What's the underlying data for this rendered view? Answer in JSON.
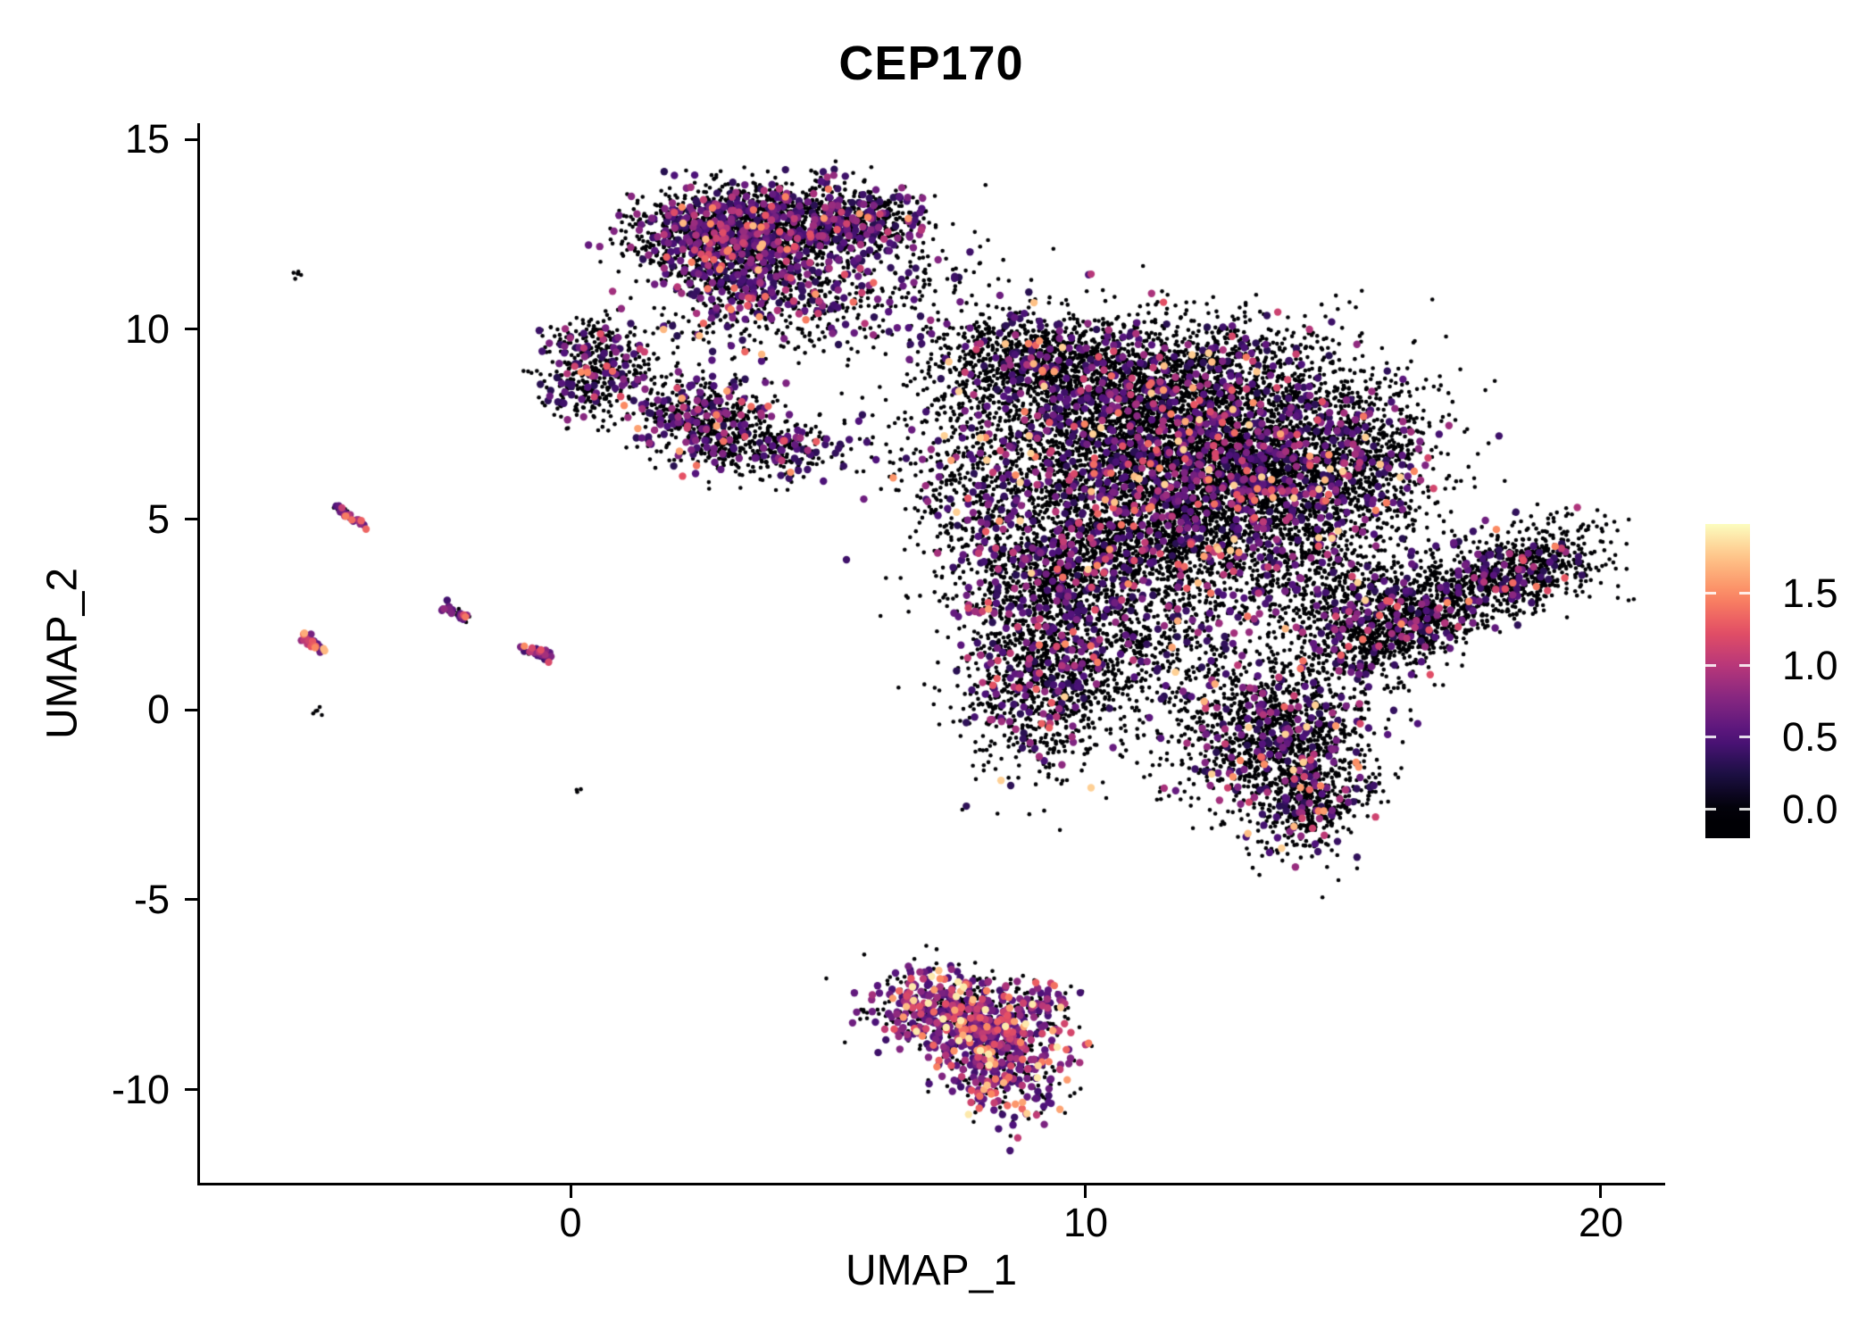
{
  "title": "CEP170",
  "axes": {
    "x": {
      "label": "UMAP_1",
      "tick_labels": [
        "0",
        "10",
        "20"
      ]
    },
    "y": {
      "label": "UMAP_2",
      "tick_labels": [
        "15",
        "10",
        "5",
        "0",
        "-5",
        "-10"
      ]
    }
  },
  "colorbar": {
    "tick_labels": [
      "1.5",
      "1.0",
      "0.5",
      "0.0"
    ],
    "domain_min": -0.19,
    "domain_max": 1.98,
    "colormap": "magma"
  },
  "chart_data": {
    "type": "scatter",
    "title": "CEP170",
    "xlabel": "UMAP_1",
    "ylabel": "UMAP_2",
    "x_ticks": [
      0,
      10,
      20
    ],
    "y_ticks": [
      15,
      10,
      5,
      0,
      -5,
      -10
    ],
    "xlim": [
      -7.3,
      22.5
    ],
    "ylim": [
      -12.4,
      15.4
    ],
    "grid": false,
    "legend": "colorbar-right",
    "colormap": "magma",
    "color_max": 1.98,
    "seed": 11,
    "point_radius": {
      "zero": 2.3,
      "positive": 4.2
    },
    "clusters": [
      {
        "name": "top-cluster",
        "expression": {
          "p_positive": 0.25,
          "base": 0.3,
          "scale": 0.35,
          "max": 1.7
        },
        "components": [
          {
            "cx": 3.0,
            "cy": 12.5,
            "sx": 0.85,
            "sy": 0.6,
            "n": 1300
          },
          {
            "cx": 4.7,
            "cy": 12.7,
            "sx": 0.85,
            "sy": 0.55,
            "n": 700
          },
          {
            "cx": 5.9,
            "cy": 12.9,
            "sx": 0.55,
            "sy": 0.45,
            "n": 230
          },
          {
            "cx": 3.7,
            "cy": 11.3,
            "sx": 1.0,
            "sy": 0.55,
            "n": 450
          },
          {
            "cx": 4.4,
            "cy": 10.3,
            "sx": 1.1,
            "sy": 0.7,
            "n": 170
          },
          {
            "cx": 6.6,
            "cy": 11.2,
            "sx": 0.9,
            "sy": 0.9,
            "n": 140
          },
          {
            "cx": 2.6,
            "cy": 9.9,
            "sx": 0.6,
            "sy": 0.8,
            "n": 60
          }
        ]
      },
      {
        "name": "upper-left-cluster",
        "expression": {
          "p_positive": 0.18,
          "base": 0.3,
          "scale": 0.35,
          "max": 1.5
        },
        "components": [
          {
            "cx": 0.5,
            "cy": 9.4,
            "sx": 0.5,
            "sy": 0.45,
            "n": 260
          },
          {
            "cx": 0.25,
            "cy": 8.3,
            "sx": 0.4,
            "sy": 0.4,
            "n": 150
          },
          {
            "cx": 1.1,
            "cy": 8.7,
            "sx": 0.4,
            "sy": 0.35,
            "n": 60
          }
        ]
      },
      {
        "name": "mid-left-cluster",
        "expression": {
          "p_positive": 0.2,
          "base": 0.3,
          "scale": 0.35,
          "max": 1.6
        },
        "components": [
          {
            "cx": 2.6,
            "cy": 7.7,
            "sx": 0.65,
            "sy": 0.5,
            "n": 480
          },
          {
            "cx": 3.4,
            "cy": 6.9,
            "sx": 0.75,
            "sy": 0.4,
            "n": 260
          },
          {
            "cx": 4.3,
            "cy": 6.8,
            "sx": 0.45,
            "sy": 0.3,
            "n": 90
          },
          {
            "cx": 5.5,
            "cy": 7.1,
            "sx": 0.7,
            "sy": 0.5,
            "n": 40
          }
        ]
      },
      {
        "name": "main-cluster",
        "expression": {
          "p_positive": 0.13,
          "base": 0.3,
          "scale": 0.4,
          "max": 1.8
        },
        "components": [
          {
            "cx": 9.0,
            "cy": 9.2,
            "sx": 1.05,
            "sy": 0.6,
            "n": 850
          },
          {
            "cx": 7.9,
            "cy": 6.3,
            "sx": 0.8,
            "sy": 1.2,
            "n": 420
          },
          {
            "cx": 10.9,
            "cy": 7.2,
            "sx": 1.45,
            "sy": 1.25,
            "n": 3100
          },
          {
            "cx": 13.5,
            "cy": 6.4,
            "sx": 1.25,
            "sy": 1.4,
            "n": 2500
          },
          {
            "cx": 15.4,
            "cy": 6.6,
            "sx": 0.75,
            "sy": 1.15,
            "n": 600
          },
          {
            "cx": 12.0,
            "cy": 9.0,
            "sx": 1.6,
            "sy": 0.8,
            "n": 700
          },
          {
            "cx": 11.4,
            "cy": 4.4,
            "sx": 1.7,
            "sy": 1.0,
            "n": 1700
          },
          {
            "cx": 9.3,
            "cy": 3.3,
            "sx": 0.95,
            "sy": 0.95,
            "n": 850
          },
          {
            "cx": 9.2,
            "cy": 0.7,
            "sx": 0.8,
            "sy": 1.15,
            "n": 950
          },
          {
            "cx": 11.2,
            "cy": 1.6,
            "sx": 1.2,
            "sy": 0.95,
            "n": 520
          },
          {
            "cx": 13.7,
            "cy": -0.7,
            "sx": 1.0,
            "sy": 1.05,
            "n": 1350
          },
          {
            "cx": 14.3,
            "cy": -2.5,
            "sx": 0.55,
            "sy": 0.65,
            "n": 380
          },
          {
            "cx": 14.9,
            "cy": 2.9,
            "sx": 0.85,
            "sy": 0.95,
            "n": 480
          }
        ]
      },
      {
        "name": "right-cluster",
        "expression": {
          "p_positive": 0.1,
          "base": 0.3,
          "scale": 0.35,
          "max": 1.5
        },
        "components": [
          {
            "cx": 17.1,
            "cy": 3.0,
            "sx": 1.15,
            "sy": 0.55,
            "rot": 28,
            "n": 900
          },
          {
            "cx": 18.7,
            "cy": 3.9,
            "sx": 0.75,
            "sy": 0.5,
            "rot": 28,
            "n": 450
          },
          {
            "cx": 16.0,
            "cy": 2.0,
            "sx": 0.7,
            "sy": 0.5,
            "rot": 30,
            "n": 330
          },
          {
            "cx": 15.3,
            "cy": 1.6,
            "sx": 0.5,
            "sy": 0.4,
            "rot": 0,
            "n": 120
          }
        ]
      },
      {
        "name": "bottom-high-expression-cluster",
        "expression": {
          "p_positive": 0.55,
          "base": 0.4,
          "scale": 0.45,
          "max": 1.9
        },
        "components": [
          {
            "cx": 7.2,
            "cy": -7.8,
            "sx": 0.7,
            "sy": 0.5,
            "n": 420
          },
          {
            "cx": 8.4,
            "cy": -9.2,
            "sx": 0.6,
            "sy": 0.75,
            "n": 480
          },
          {
            "cx": 7.9,
            "cy": -8.3,
            "sx": 0.5,
            "sy": 0.4,
            "n": 200
          },
          {
            "cx": 9.2,
            "cy": -7.7,
            "sx": 0.35,
            "sy": 0.3,
            "n": 70
          }
        ]
      }
    ],
    "streaks": [
      {
        "name": "streak-1",
        "x1": -4.6,
        "y1": 5.35,
        "x2": -4.05,
        "y2": 4.9,
        "jitter": 0.05,
        "n": 40,
        "expression": {
          "p_positive": 0.55,
          "base": 0.4,
          "scale": 0.35,
          "max": 1.5
        }
      },
      {
        "name": "streak-2",
        "x1": -2.45,
        "y1": 2.75,
        "x2": -2.0,
        "y2": 2.35,
        "jitter": 0.05,
        "n": 35,
        "expression": {
          "p_positive": 0.55,
          "base": 0.4,
          "scale": 0.35,
          "max": 1.5
        }
      },
      {
        "name": "streak-3",
        "x1": -5.25,
        "y1": 1.95,
        "x2": -4.8,
        "y2": 1.55,
        "jitter": 0.05,
        "n": 35,
        "expression": {
          "p_positive": 0.6,
          "base": 0.5,
          "scale": 0.45,
          "max": 1.7
        }
      },
      {
        "name": "streak-4",
        "x1": -0.95,
        "y1": 1.7,
        "x2": -0.4,
        "y2": 1.35,
        "jitter": 0.06,
        "n": 40,
        "expression": {
          "p_positive": 0.55,
          "base": 0.4,
          "scale": 0.35,
          "max": 1.5
        }
      }
    ],
    "isolated_dots": [
      {
        "x": -5.35,
        "y": 11.45,
        "n": 6,
        "jitter": 0.08
      },
      {
        "x": -4.85,
        "y": -0.05,
        "n": 5,
        "jitter": 0.07
      },
      {
        "x": 0.2,
        "y": -2.1,
        "n": 3,
        "jitter": 0.05
      }
    ]
  }
}
